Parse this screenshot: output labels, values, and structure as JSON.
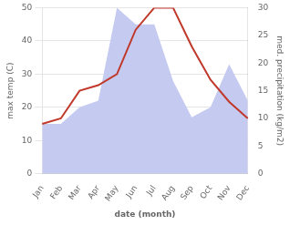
{
  "chart_data": {
    "type": "line",
    "xlabel": "date (month)",
    "ylabel": "max temp (C)",
    "y2label": "med. precipitation (kg/m2)",
    "categories": [
      "Jan",
      "Feb",
      "Mar",
      "Apr",
      "May",
      "Jun",
      "Jul",
      "Aug",
      "Sep",
      "Oct",
      "Nov",
      "Dec"
    ],
    "series": [
      {
        "type": "area",
        "color": "#c5caf0",
        "values": [
          15,
          15,
          20,
          22,
          50,
          45,
          45,
          28,
          17,
          20,
          33,
          22
        ]
      },
      {
        "type": "line",
        "color": "#c0392b",
        "axis": "y2",
        "values": [
          9,
          10,
          15,
          16,
          18,
          26,
          30,
          30,
          23,
          17,
          13,
          10
        ]
      }
    ],
    "ylim": [
      0,
      50
    ],
    "yticks": [
      0,
      10,
      20,
      30,
      40,
      50
    ],
    "y2lim": [
      0,
      30
    ],
    "y2ticks": [
      0,
      5,
      10,
      15,
      20,
      25,
      30
    ],
    "grid": true
  }
}
